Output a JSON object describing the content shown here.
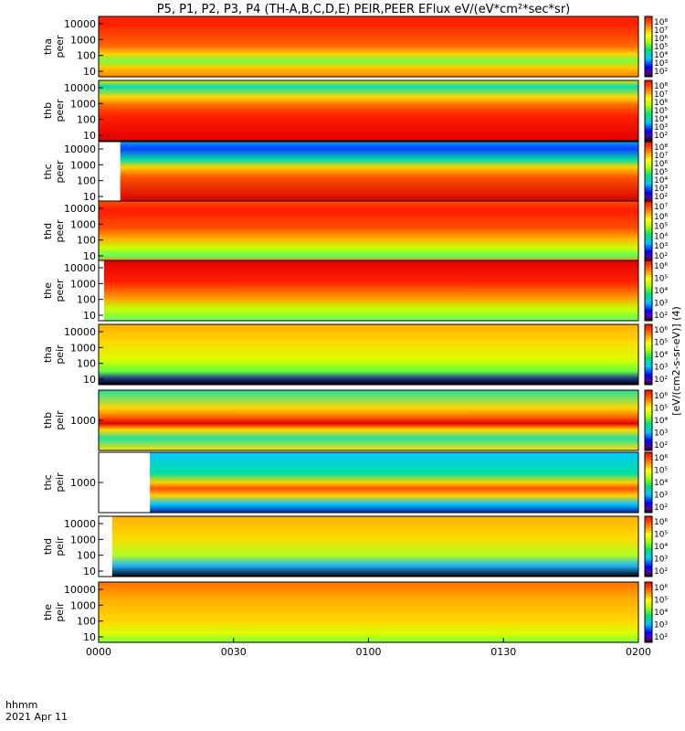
{
  "chart_data": {
    "type": "heatmap",
    "title": "P5, P1, P2, P3, P4 (TH-A,B,C,D,E) PEIR,PEER EFlux eV/(eV*cm²*sec*sr)",
    "x_ticks": [
      "0000",
      "0030",
      "0100",
      "0130",
      "0200"
    ],
    "x_axis_label_line1": "hhmm",
    "x_axis_label_line2": "2021 Apr 11",
    "colorbar_label": "[eV/(cm2-s-sr-eV)] (4)",
    "colorbar_scale": "log",
    "panels": [
      {
        "probe": "tha",
        "instrument": "peer",
        "yticks": [
          "10000",
          "1000",
          "100",
          "10"
        ],
        "cbar_ticks": [
          "10⁸",
          "10⁷",
          "10⁶",
          "10⁵",
          "10⁴",
          "10³",
          "10²"
        ],
        "data_start_fraction": 0.0
      },
      {
        "probe": "thb",
        "instrument": "peer",
        "yticks": [
          "10000",
          "1000",
          "100",
          "10"
        ],
        "cbar_ticks": [
          "10⁸",
          "10⁷",
          "10⁶",
          "10⁵",
          "10⁴",
          "10³",
          "10²"
        ],
        "data_start_fraction": 0.0
      },
      {
        "probe": "thc",
        "instrument": "peer",
        "yticks": [
          "10000",
          "1000",
          "100",
          "10"
        ],
        "cbar_ticks": [
          "10⁸",
          "10⁷",
          "10⁶",
          "10⁵",
          "10⁴",
          "10³",
          "10²"
        ],
        "data_start_fraction": 0.04
      },
      {
        "probe": "thd",
        "instrument": "peer",
        "yticks": [
          "10000",
          "1000",
          "100",
          "10"
        ],
        "cbar_ticks": [
          "10⁷",
          "10⁶",
          "10⁵",
          "10⁴",
          "10³",
          "10²"
        ],
        "data_start_fraction": 0.0
      },
      {
        "probe": "the",
        "instrument": "peer",
        "yticks": [
          "10000",
          "1000",
          "100",
          "10"
        ],
        "cbar_ticks": [
          "10⁶",
          "10⁵",
          "10⁴",
          "10³",
          "10²"
        ],
        "data_start_fraction": 0.01
      },
      {
        "probe": "tha",
        "instrument": "peir",
        "yticks": [
          "10000",
          "1000",
          "100",
          "10"
        ],
        "cbar_ticks": [
          "10⁶",
          "10⁵",
          "10⁴",
          "10³",
          "10²"
        ],
        "data_start_fraction": 0.0
      },
      {
        "probe": "thb",
        "instrument": "peir",
        "yticks": [
          "1000"
        ],
        "cbar_ticks": [
          "10⁶",
          "10⁵",
          "10⁴",
          "10³",
          "10²"
        ],
        "data_start_fraction": 0.0
      },
      {
        "probe": "thc",
        "instrument": "peir",
        "yticks": [
          "1000"
        ],
        "cbar_ticks": [
          "10⁶",
          "10⁵",
          "10⁴",
          "10³",
          "10²"
        ],
        "data_start_fraction": 0.095
      },
      {
        "probe": "thd",
        "instrument": "peir",
        "yticks": [
          "10000",
          "1000",
          "100",
          "10"
        ],
        "cbar_ticks": [
          "10⁶",
          "10⁵",
          "10⁴",
          "10³",
          "10²"
        ],
        "data_start_fraction": 0.025
      },
      {
        "probe": "the",
        "instrument": "peir",
        "yticks": [
          "10000",
          "1000",
          "100",
          "10"
        ],
        "cbar_ticks": [
          "10⁶",
          "10⁵",
          "10⁴",
          "10³",
          "10²"
        ],
        "data_start_fraction": 0.0
      }
    ]
  }
}
